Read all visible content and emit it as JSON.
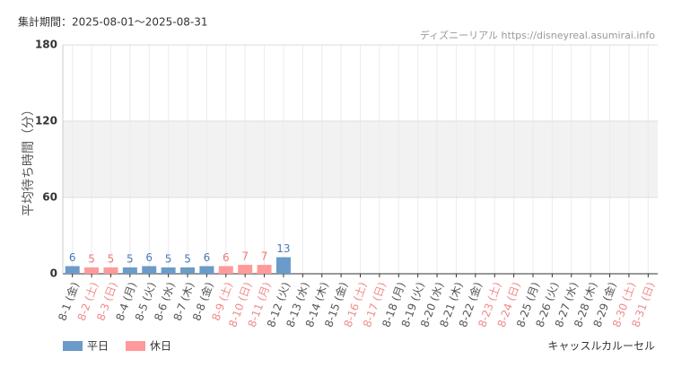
{
  "chart_data": {
    "type": "bar",
    "period": "集計期間：2025-08-01～2025-08-31",
    "source": "ディズニーリアル https://disneyreal.asumirai.info",
    "y_label": "平均待ち時間（分）",
    "attraction": "キャッスルカルーセル",
    "categories": [
      "8-1 (金)",
      "8-2 (土)",
      "8-3 (日)",
      "8-4 (月)",
      "8-5 (火)",
      "8-6 (水)",
      "8-7 (木)",
      "8-8 (金)",
      "8-9 (土)",
      "8-10 (日)",
      "8-11 (月)",
      "8-12 (火)",
      "8-13 (水)",
      "8-14 (木)",
      "8-15 (金)",
      "8-16 (土)",
      "8-17 (日)",
      "8-18 (月)",
      "8-19 (火)",
      "8-20 (水)",
      "8-21 (木)",
      "8-22 (金)",
      "8-23 (土)",
      "8-24 (日)",
      "8-25 (月)",
      "8-26 (火)",
      "8-27 (水)",
      "8-28 (木)",
      "8-29 (金)",
      "8-30 (土)",
      "8-31 (日)"
    ],
    "category_label_colors": [
      "#555",
      "#f08a8a",
      "#f08a8a",
      "#555",
      "#555",
      "#555",
      "#555",
      "#555",
      "#f08a8a",
      "#f08a8a",
      "#f08a8a",
      "#555",
      "#555",
      "#555",
      "#555",
      "#f08a8a",
      "#f08a8a",
      "#555",
      "#555",
      "#555",
      "#555",
      "#555",
      "#f08a8a",
      "#f08a8a",
      "#555",
      "#555",
      "#555",
      "#555",
      "#555",
      "#f08a8a",
      "#f08a8a"
    ],
    "series": [
      {
        "name": "平日",
        "color": "#6b9bc8",
        "label_color": "#4a7ab5",
        "values": [
          6,
          null,
          null,
          5,
          6,
          5,
          5,
          6,
          null,
          null,
          null,
          13,
          null,
          null,
          null,
          null,
          null,
          null,
          null,
          null,
          null,
          null,
          null,
          null,
          null,
          null,
          null,
          null,
          null,
          null,
          null
        ]
      },
      {
        "name": "休日",
        "color": "#ff9a9a",
        "label_color": "#f07878",
        "values": [
          null,
          5,
          5,
          null,
          null,
          null,
          null,
          null,
          6,
          7,
          7,
          null,
          null,
          null,
          null,
          null,
          null,
          null,
          null,
          null,
          null,
          null,
          null,
          null,
          null,
          null,
          null,
          null,
          null,
          null,
          null
        ]
      }
    ],
    "ylim": [
      0,
      180
    ],
    "yticks": [
      0,
      60,
      120,
      180
    ],
    "shaded_range": [
      60,
      120
    ],
    "grid": true
  }
}
